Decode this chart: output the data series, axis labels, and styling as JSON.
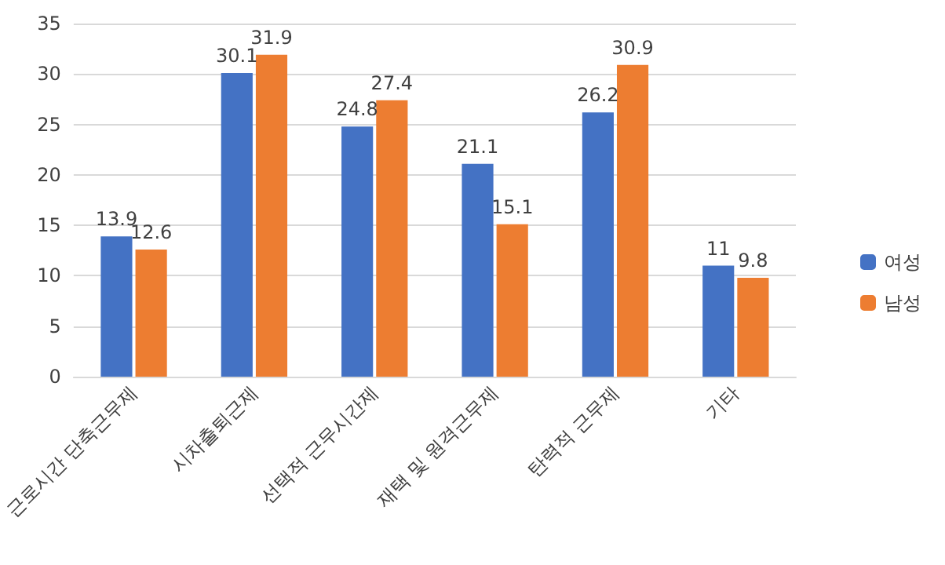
{
  "chart_data": {
    "type": "bar",
    "categories": [
      "근로시간 단축근무제",
      "시차출퇴근제",
      "선택적 근무시간제",
      "재택 및 원격근무제",
      "탄력적 근무제",
      "기타"
    ],
    "series": [
      {
        "name": "여성",
        "color": "#4472c4",
        "values": [
          13.9,
          30.1,
          24.8,
          21.1,
          26.2,
          11
        ]
      },
      {
        "name": "남성",
        "color": "#ed7d31",
        "values": [
          12.6,
          31.9,
          27.4,
          15.1,
          30.9,
          9.8
        ]
      }
    ],
    "ylim": [
      0,
      35
    ],
    "yticks": [
      0,
      5,
      10,
      15,
      20,
      25,
      30,
      35
    ],
    "grid": "y",
    "legend": "right",
    "data_labels": true
  }
}
